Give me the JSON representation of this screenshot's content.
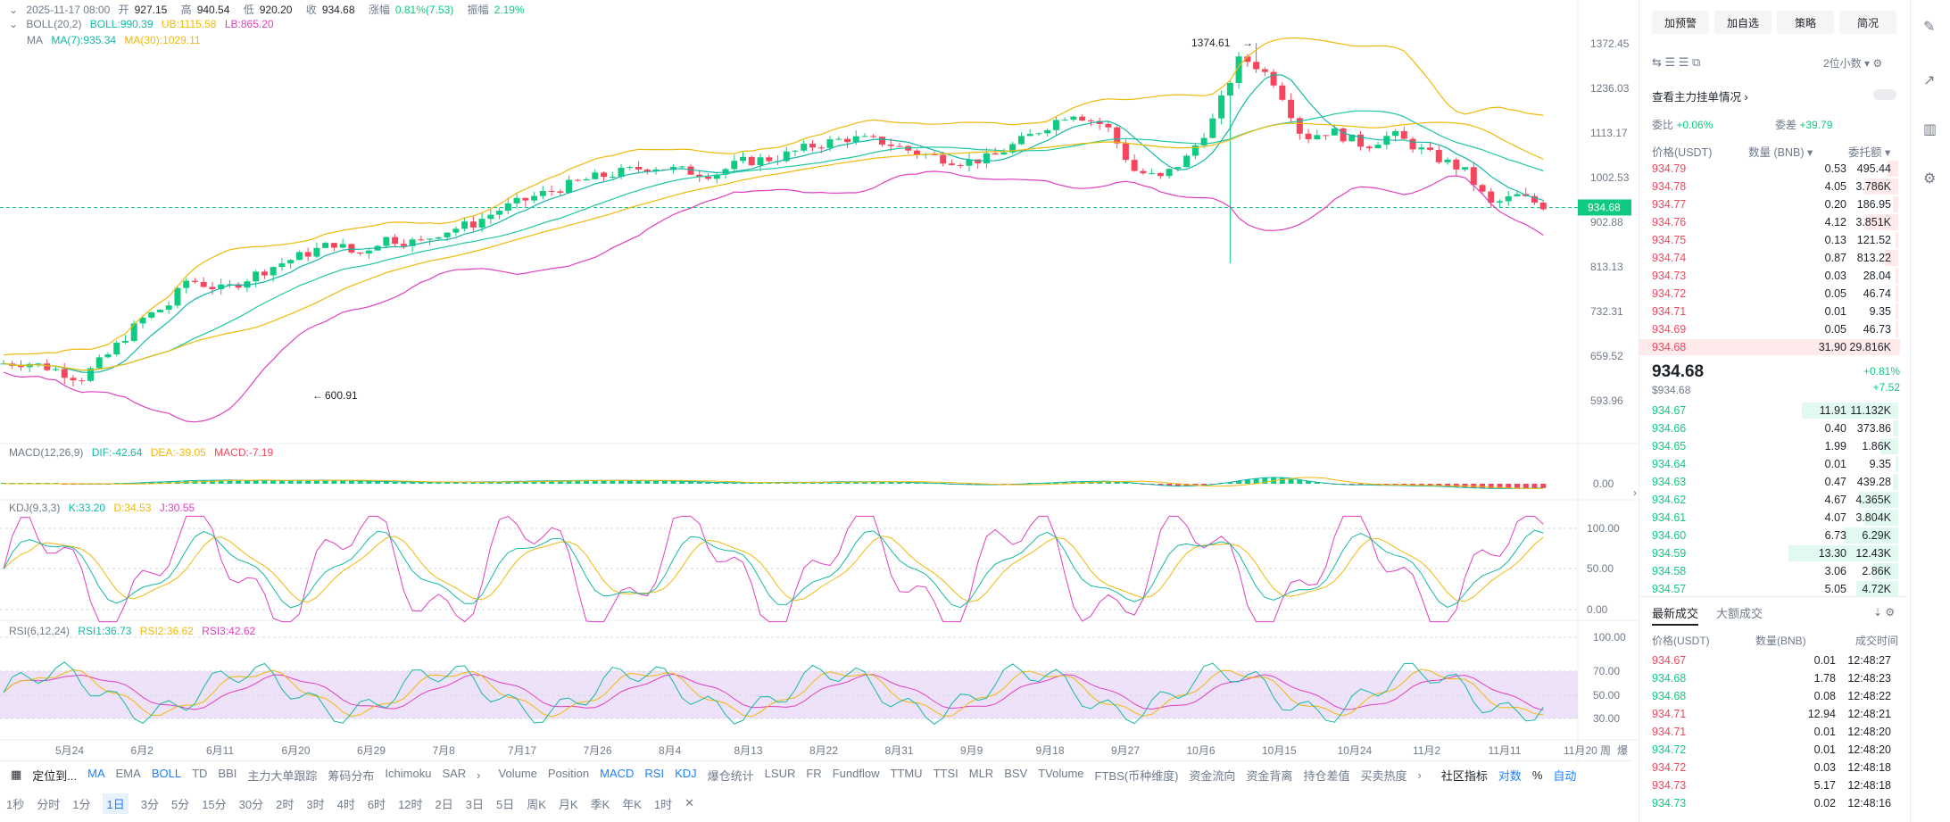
{
  "header": {
    "row1": {
      "time": "2025-11-17 08:00",
      "open_lbl": "开",
      "open": "927.15",
      "high_lbl": "高",
      "high": "940.54",
      "low_lbl": "低",
      "low": "920.20",
      "close_lbl": "收",
      "close": "934.68",
      "chg_lbl": "涨幅",
      "chg": "0.81%(7.53)",
      "amp_lbl": "振幅",
      "amp": "2.19%"
    },
    "boll": {
      "name": "BOLL(20,2)",
      "boll": "BOLL:990.39",
      "ub": "UB:1115.58",
      "lb": "LB:865.20"
    },
    "ma": {
      "name": "MA",
      "ma7": "MA(7):935.34",
      "ma30": "MA(30):1029.11"
    },
    "macd": {
      "name": "MACD(12,26,9)",
      "dif": "DIF:-42.64",
      "dea": "DEA:-39.05",
      "macd": "MACD:-7.19"
    },
    "kdj": {
      "name": "KDJ(9,3,3)",
      "k": "K:33.20",
      "d": "D:34.53",
      "j": "J:30.55"
    },
    "rsi": {
      "name": "RSI(6,12,24)",
      "r1": "RSI1:36.73",
      "r2": "RSI2:36.62",
      "r3": "RSI3:42.62"
    }
  },
  "price_axis": [
    "1372.45",
    "1236.03",
    "1113.17",
    "1002.53",
    "902.88",
    "813.13",
    "732.31",
    "659.52",
    "593.96"
  ],
  "current_price_tag": "934.68",
  "high_marker": "1374.61",
  "low_marker": "600.91",
  "macd_axis": [
    "0.00"
  ],
  "kdj_axis": [
    "100.00",
    "50.00",
    "0.00"
  ],
  "rsi_axis": [
    "100.00",
    "70.00",
    "50.00",
    "30.00"
  ],
  "date_axis": [
    "5月24",
    "6月2",
    "6月11",
    "6月20",
    "6月29",
    "7月8",
    "7月17",
    "7月26",
    "8月4",
    "8月13",
    "8月22",
    "8月31",
    "9月9",
    "9月18",
    "9月27",
    "10月6",
    "10月15",
    "10月24",
    "11月2",
    "11月11",
    "11月20"
  ],
  "date_axis_right": [
    "周",
    "爆"
  ],
  "indicator_bar": {
    "locate": "定位到...",
    "main": [
      "MA",
      "EMA",
      "BOLL",
      "TD",
      "BBI",
      "主力大单跟踪",
      "筹码分布",
      "Ichimoku",
      "SAR"
    ],
    "main_active": [
      "MA",
      "BOLL"
    ],
    "sub": [
      "Volume",
      "Position",
      "MACD",
      "RSI",
      "KDJ",
      "爆仓统计",
      "LSUR",
      "FR",
      "Fundflow",
      "TTMU",
      "TTSI",
      "MLR",
      "BSV",
      "TVolume",
      "FTBS(币种维度)",
      "资金流向",
      "资金背离",
      "持仓差值",
      "买卖热度"
    ],
    "sub_active": [
      "MACD",
      "RSI",
      "KDJ"
    ],
    "community": "社区指标",
    "log": "对数",
    "pct": "%",
    "auto": "自动"
  },
  "timeframes": [
    "1秒",
    "分时",
    "1分",
    "1日",
    "3分",
    "5分",
    "15分",
    "30分",
    "2时",
    "3时",
    "4时",
    "6时",
    "12时",
    "2日",
    "3日",
    "5日",
    "周K",
    "月K",
    "季K",
    "年K",
    "1时"
  ],
  "timeframe_active": "1日",
  "right_panel": {
    "buttons": [
      "加预警",
      "加自选",
      "策略",
      "简况"
    ],
    "precision": "2位小数",
    "watch_main": "查看主力挂单情况",
    "ratio_lbl": "委比",
    "ratio": "+0.06%",
    "diff_lbl": "委差",
    "diff": "+39.79",
    "cols": [
      "价格(USDT)",
      "数量 (BNB)",
      "委托额"
    ],
    "asks": [
      {
        "p": "934.79",
        "q": "0.53",
        "t": "495.44",
        "w": 0.04
      },
      {
        "p": "934.78",
        "q": "4.05",
        "t": "3.786K",
        "w": 0.13
      },
      {
        "p": "934.77",
        "q": "0.20",
        "t": "186.95",
        "w": 0.02
      },
      {
        "p": "934.76",
        "q": "4.12",
        "t": "3.851K",
        "w": 0.13
      },
      {
        "p": "934.75",
        "q": "0.13",
        "t": "121.52",
        "w": 0.01
      },
      {
        "p": "934.74",
        "q": "0.87",
        "t": "813.22",
        "w": 0.05
      },
      {
        "p": "934.73",
        "q": "0.03",
        "t": "28.04",
        "w": 0.01
      },
      {
        "p": "934.72",
        "q": "0.05",
        "t": "46.74",
        "w": 0.01
      },
      {
        "p": "934.71",
        "q": "0.01",
        "t": "9.35",
        "w": 0.01
      },
      {
        "p": "934.69",
        "q": "0.05",
        "t": "46.73",
        "w": 0.01
      },
      {
        "p": "934.68",
        "q": "31.90",
        "t": "29.816K",
        "w": 1.0
      }
    ],
    "last_price": "934.68",
    "last_usd": "$934.68",
    "last_pct": "+0.81%",
    "last_chg": "+7.52",
    "bids": [
      {
        "p": "934.67",
        "q": "11.91",
        "t": "11.132K",
        "w": 0.37
      },
      {
        "p": "934.66",
        "q": "0.40",
        "t": "373.86",
        "w": 0.02
      },
      {
        "p": "934.65",
        "q": "1.99",
        "t": "1.86K",
        "w": 0.07
      },
      {
        "p": "934.64",
        "q": "0.01",
        "t": "9.35",
        "w": 0.01
      },
      {
        "p": "934.63",
        "q": "0.47",
        "t": "439.28",
        "w": 0.02
      },
      {
        "p": "934.62",
        "q": "4.67",
        "t": "4.365K",
        "w": 0.15
      },
      {
        "p": "934.61",
        "q": "4.07",
        "t": "3.804K",
        "w": 0.13
      },
      {
        "p": "934.60",
        "q": "6.73",
        "t": "6.29K",
        "w": 0.21
      },
      {
        "p": "934.59",
        "q": "13.30",
        "t": "12.43K",
        "w": 0.42
      },
      {
        "p": "934.58",
        "q": "3.06",
        "t": "2.86K",
        "w": 0.1
      },
      {
        "p": "934.57",
        "q": "5.05",
        "t": "4.72K",
        "w": 0.16
      }
    ],
    "trades_tabs": [
      "最新成交",
      "大额成交"
    ],
    "trade_cols": [
      "价格(USDT)",
      "数量(BNB)",
      "成交时间"
    ],
    "trades": [
      {
        "p": "934.67",
        "q": "0.01",
        "t": "12:48:27",
        "s": "sell"
      },
      {
        "p": "934.68",
        "q": "1.78",
        "t": "12:48:23",
        "s": "buy"
      },
      {
        "p": "934.68",
        "q": "0.08",
        "t": "12:48:22",
        "s": "buy"
      },
      {
        "p": "934.71",
        "q": "12.94",
        "t": "12:48:21",
        "s": "sell"
      },
      {
        "p": "934.71",
        "q": "0.01",
        "t": "12:48:20",
        "s": "sell"
      },
      {
        "p": "934.72",
        "q": "0.01",
        "t": "12:48:20",
        "s": "buy"
      },
      {
        "p": "934.72",
        "q": "0.03",
        "t": "12:48:18",
        "s": "sell"
      },
      {
        "p": "934.73",
        "q": "5.17",
        "t": "12:48:18",
        "s": "sell"
      },
      {
        "p": "934.73",
        "q": "0.02",
        "t": "12:48:16",
        "s": "buy"
      }
    ]
  },
  "colors": {
    "up": "#0ecb81",
    "down": "#f6465d",
    "ma7": "#14b8a6",
    "ma30": "#f0b90b",
    "lb": "#e040c0",
    "accent": "#1e80ff"
  }
}
